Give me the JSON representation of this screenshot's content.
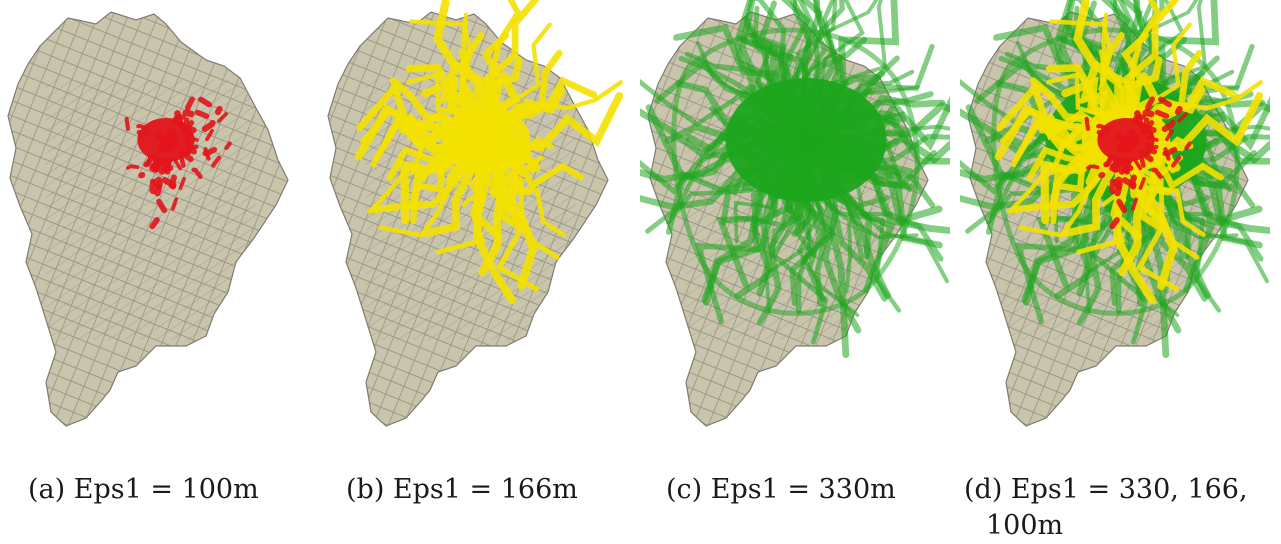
{
  "figure": {
    "panels": [
      {
        "id": "a",
        "caption": "(a) Eps1 = 100m",
        "clusters": [
          "red"
        ]
      },
      {
        "id": "b",
        "caption": "(b) Eps1 = 166m",
        "clusters": [
          "yellow"
        ]
      },
      {
        "id": "c",
        "caption": "(c) Eps1 = 330m",
        "clusters": [
          "green"
        ]
      },
      {
        "id": "d",
        "caption_line1": "(d) Eps1 = 330, 166,",
        "caption_line2": "100m",
        "clusters": [
          "green",
          "yellow",
          "red"
        ]
      }
    ],
    "colors": {
      "land": "#c9c5ad",
      "roads": "#8f8878",
      "border": "#7d7a70",
      "red": "#e3141c",
      "yellow": "#f3e100",
      "green": "#1ea51e"
    }
  }
}
